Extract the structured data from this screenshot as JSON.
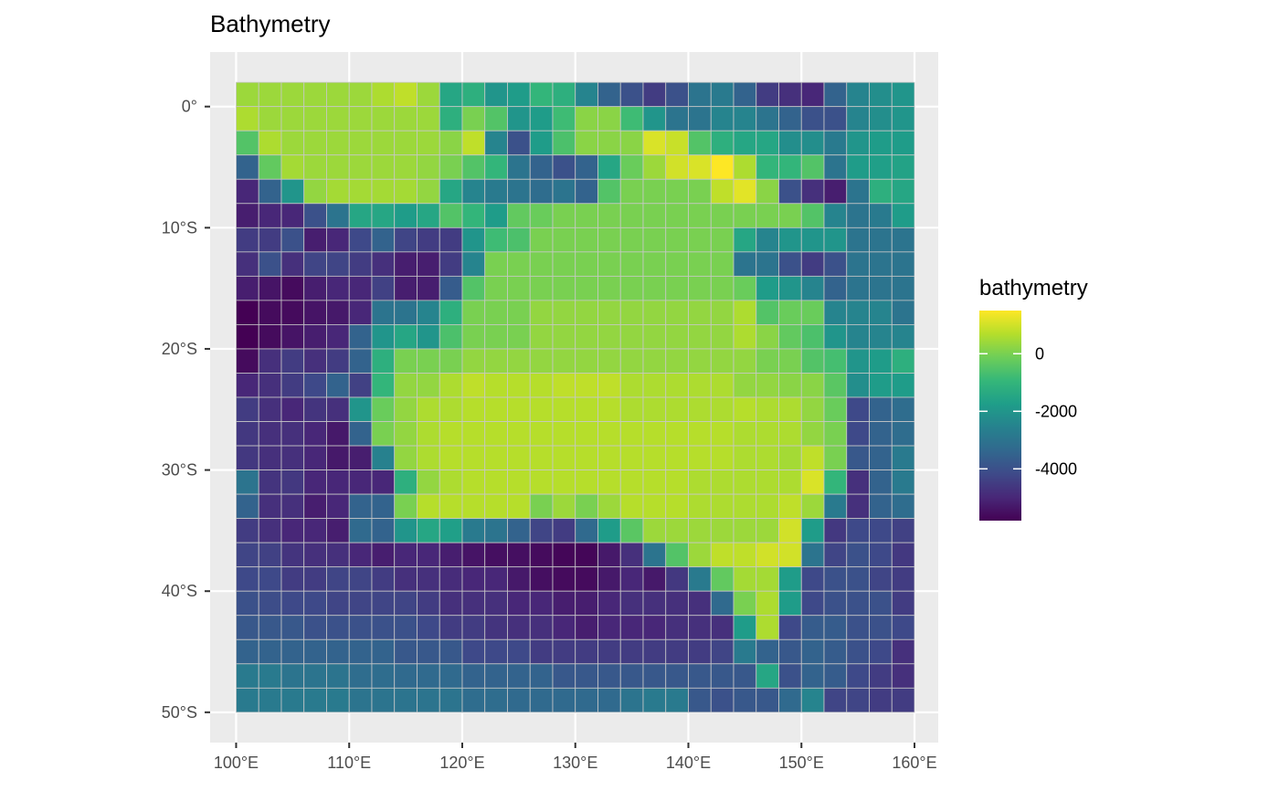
{
  "chart_data": {
    "type": "heatmap",
    "title": "Bathymetry",
    "xlabel": "",
    "ylabel": "",
    "x_ticks": [
      {
        "value": 100,
        "label": "100°E"
      },
      {
        "value": 110,
        "label": "110°E"
      },
      {
        "value": 120,
        "label": "120°E"
      },
      {
        "value": 130,
        "label": "130°E"
      },
      {
        "value": 140,
        "label": "140°E"
      },
      {
        "value": 150,
        "label": "150°E"
      },
      {
        "value": 160,
        "label": "160°E"
      }
    ],
    "y_ticks": [
      {
        "value": 0,
        "label": "0°"
      },
      {
        "value": -10,
        "label": "10°S"
      },
      {
        "value": -20,
        "label": "20°S"
      },
      {
        "value": -30,
        "label": "30°S"
      },
      {
        "value": -40,
        "label": "40°S"
      },
      {
        "value": -50,
        "label": "50°S"
      }
    ],
    "xlim": [
      97.7,
      162.1
    ],
    "ylim": [
      -52.5,
      4.5
    ],
    "x": [
      101,
      103,
      105,
      107,
      109,
      111,
      113,
      115,
      117,
      119,
      121,
      123,
      125,
      127,
      129,
      131,
      133,
      135,
      137,
      139,
      141,
      143,
      145,
      147,
      149,
      151,
      153,
      155,
      157,
      159
    ],
    "y": [
      1,
      -1,
      -3,
      -5,
      -7,
      -9,
      -11,
      -13,
      -15,
      -17,
      -19,
      -21,
      -23,
      -25,
      -27,
      -29,
      -31,
      -33,
      -35,
      -37,
      -39,
      -41,
      -43,
      -45,
      -47,
      -49
    ],
    "values": [
      [
        400,
        400,
        400,
        400,
        400,
        400,
        600,
        800,
        400,
        -1500,
        -1200,
        -2000,
        -1800,
        -1000,
        -1200,
        -2500,
        -3500,
        -4000,
        -4500,
        -4000,
        -3000,
        -2800,
        -3500,
        -4500,
        -4800,
        -5000,
        -3500,
        -2500,
        -2200,
        -2000
      ],
      [
        600,
        400,
        400,
        400,
        400,
        400,
        400,
        400,
        400,
        -1200,
        0,
        -500,
        -2000,
        -1800,
        -800,
        200,
        200,
        -800,
        -2000,
        -3000,
        -3000,
        -2500,
        -2500,
        -3000,
        -3500,
        -4000,
        -4000,
        -2500,
        -2200,
        -2000
      ],
      [
        -500,
        600,
        400,
        400,
        400,
        400,
        400,
        400,
        400,
        200,
        800,
        -2500,
        -4000,
        -1800,
        -600,
        200,
        200,
        200,
        1100,
        900,
        -500,
        -1200,
        -1500,
        -1500,
        -2200,
        -2200,
        -2800,
        -2000,
        -1800,
        -1800
      ],
      [
        -3500,
        -300,
        500,
        400,
        400,
        400,
        400,
        400,
        300,
        0,
        -500,
        -1000,
        -3000,
        -3500,
        -4000,
        -3500,
        -1500,
        -200,
        400,
        1000,
        1100,
        1500,
        600,
        -1000,
        -1000,
        -500,
        -3000,
        -1800,
        -1700,
        -1600
      ],
      [
        -5000,
        -3500,
        -2000,
        300,
        500,
        500,
        500,
        500,
        300,
        -1500,
        -2500,
        -2800,
        -3000,
        -3200,
        -3000,
        -3500,
        -500,
        0,
        0,
        0,
        0,
        800,
        1200,
        200,
        -4000,
        -4800,
        -5200,
        -3000,
        -1200,
        -1500
      ],
      [
        -5200,
        -5000,
        -5000,
        -4000,
        -3000,
        -1500,
        -1500,
        -1800,
        -1500,
        -500,
        -1000,
        -1800,
        -300,
        -200,
        0,
        0,
        0,
        0,
        0,
        0,
        0,
        0,
        0,
        0,
        0,
        -500,
        -2500,
        -3000,
        -2800,
        -1800
      ],
      [
        -4500,
        -4500,
        -4000,
        -5200,
        -5000,
        -4200,
        -3500,
        -4300,
        -4500,
        -4500,
        -2000,
        -800,
        -600,
        0,
        0,
        0,
        0,
        0,
        0,
        0,
        0,
        0,
        -1500,
        -2500,
        -2000,
        -2000,
        -2000,
        -3000,
        -3000,
        -3000
      ],
      [
        -4800,
        -4000,
        -4800,
        -4300,
        -4300,
        -4500,
        -4800,
        -5200,
        -5200,
        -4500,
        -2500,
        0,
        0,
        0,
        0,
        0,
        0,
        0,
        0,
        0,
        0,
        0,
        -3000,
        -3000,
        -4000,
        -4500,
        -4000,
        -3000,
        -3000,
        -3000
      ],
      [
        -5200,
        -5400,
        -5600,
        -5200,
        -5000,
        -5000,
        -4400,
        -5200,
        -5200,
        -3700,
        -500,
        0,
        0,
        0,
        0,
        0,
        0,
        0,
        0,
        0,
        0,
        0,
        -200,
        -1800,
        -2000,
        -2500,
        -3500,
        -3000,
        -3000,
        -3000
      ],
      [
        -5800,
        -5600,
        -5600,
        -5400,
        -5300,
        -5000,
        -3000,
        -3000,
        -2500,
        -1200,
        0,
        0,
        0,
        300,
        300,
        300,
        300,
        300,
        300,
        300,
        300,
        300,
        600,
        -500,
        -200,
        -200,
        -2500,
        -2500,
        -2500,
        -3000
      ],
      [
        -5800,
        -5600,
        -5400,
        -5200,
        -5000,
        -3500,
        -2000,
        -1500,
        -2000,
        -600,
        0,
        0,
        0,
        300,
        300,
        300,
        300,
        300,
        300,
        300,
        300,
        300,
        600,
        200,
        -300,
        -600,
        -2000,
        -2500,
        -2500,
        -2500
      ],
      [
        -5600,
        -4800,
        -4500,
        -4800,
        -4500,
        -3500,
        -1200,
        0,
        0,
        0,
        300,
        300,
        300,
        300,
        300,
        300,
        300,
        300,
        300,
        300,
        300,
        300,
        300,
        0,
        0,
        -500,
        -700,
        -2000,
        -1800,
        -1200
      ],
      [
        -5000,
        -4800,
        -4500,
        -4200,
        -3500,
        -4400,
        -1000,
        300,
        300,
        600,
        800,
        700,
        700,
        700,
        800,
        800,
        800,
        600,
        600,
        600,
        600,
        600,
        300,
        300,
        200,
        200,
        -400,
        -2200,
        -1800,
        -1800
      ],
      [
        -4500,
        -4800,
        -5000,
        -4700,
        -4800,
        -2000,
        -200,
        300,
        600,
        600,
        700,
        700,
        700,
        700,
        700,
        700,
        700,
        600,
        600,
        600,
        600,
        600,
        700,
        600,
        600,
        300,
        -200,
        -4200,
        -3500,
        -3200
      ],
      [
        -4600,
        -4800,
        -4800,
        -5000,
        -5300,
        -3500,
        0,
        300,
        600,
        700,
        700,
        700,
        700,
        700,
        700,
        700,
        700,
        700,
        700,
        700,
        700,
        700,
        600,
        600,
        600,
        300,
        0,
        -4200,
        -3500,
        -3200
      ],
      [
        -4600,
        -4800,
        -4800,
        -5000,
        -5300,
        -5200,
        -2600,
        300,
        600,
        700,
        700,
        700,
        700,
        700,
        700,
        700,
        700,
        700,
        700,
        700,
        700,
        700,
        600,
        600,
        500,
        800,
        0,
        -3800,
        -3500,
        -2800
      ],
      [
        -3000,
        -4700,
        -4600,
        -5000,
        -5000,
        -5000,
        -5000,
        -1200,
        300,
        600,
        700,
        700,
        700,
        700,
        700,
        700,
        700,
        700,
        700,
        700,
        600,
        600,
        600,
        600,
        600,
        1100,
        -1000,
        -4800,
        -3500,
        -2800
      ],
      [
        -3500,
        -4800,
        -4800,
        -5200,
        -5000,
        -3500,
        -3500,
        0,
        700,
        700,
        700,
        700,
        700,
        0,
        400,
        0,
        400,
        700,
        700,
        700,
        600,
        600,
        600,
        600,
        800,
        400,
        -2800,
        -4800,
        -3500,
        -3200
      ],
      [
        -4500,
        -4800,
        -5000,
        -5000,
        -5200,
        -3300,
        -3500,
        -2000,
        -1500,
        -1700,
        -2800,
        -3000,
        -3500,
        -4300,
        -4500,
        -3300,
        -1800,
        -400,
        400,
        400,
        400,
        400,
        400,
        400,
        1000,
        -1800,
        -4600,
        -4200,
        -4200,
        -4400
      ],
      [
        -4300,
        -4400,
        -4700,
        -4800,
        -4800,
        -5000,
        -5200,
        -5000,
        -5000,
        -5200,
        -5400,
        -5500,
        -5500,
        -5600,
        -5700,
        -5700,
        -5300,
        -4800,
        -3000,
        -500,
        400,
        800,
        800,
        1000,
        1000,
        -3000,
        -4300,
        -4000,
        -4200,
        -4600
      ],
      [
        -4200,
        -4200,
        -4500,
        -4500,
        -4300,
        -4300,
        -4500,
        -4800,
        -4800,
        -4900,
        -5000,
        -5000,
        -5300,
        -5500,
        -5600,
        -5600,
        -5300,
        -5000,
        -5300,
        -4600,
        -2800,
        -300,
        500,
        500,
        -1800,
        -4200,
        -4000,
        -4000,
        -4300,
        -4500
      ],
      [
        -4000,
        -4100,
        -4200,
        -4200,
        -4300,
        -4300,
        -4300,
        -4300,
        -4500,
        -4800,
        -4800,
        -4800,
        -5000,
        -5000,
        -5200,
        -5200,
        -5000,
        -4800,
        -4800,
        -4800,
        -4800,
        -3300,
        0,
        600,
        -1800,
        -4200,
        -4000,
        -4000,
        -4000,
        -4500
      ],
      [
        -3800,
        -3800,
        -3800,
        -4000,
        -4000,
        -4000,
        -4000,
        -4000,
        -4200,
        -4500,
        -4500,
        -4700,
        -4800,
        -4800,
        -5000,
        -5200,
        -5000,
        -5000,
        -5000,
        -4800,
        -4800,
        -4800,
        -1800,
        600,
        -4200,
        -3700,
        -3700,
        -4000,
        -4000,
        -4200
      ],
      [
        -3500,
        -3500,
        -3500,
        -3500,
        -3500,
        -3500,
        -3500,
        -3800,
        -3800,
        -3800,
        -4200,
        -4200,
        -4200,
        -4500,
        -4500,
        -4500,
        -4500,
        -4500,
        -4500,
        -4500,
        -4500,
        -4300,
        -2800,
        -3500,
        -3800,
        -3500,
        -3700,
        -4000,
        -4200,
        -4800
      ],
      [
        -2800,
        -2800,
        -3000,
        -3000,
        -3000,
        -3200,
        -3200,
        -3300,
        -3300,
        -3300,
        -3500,
        -3500,
        -3500,
        -3500,
        -3800,
        -3800,
        -3800,
        -3800,
        -3800,
        -3800,
        -3800,
        -3800,
        -3800,
        -1500,
        -4000,
        -3500,
        -3700,
        -4200,
        -4500,
        -4800
      ],
      [
        -2800,
        -2800,
        -2800,
        -2800,
        -2800,
        -3000,
        -3000,
        -3000,
        -3000,
        -3000,
        -3200,
        -3200,
        -3300,
        -3300,
        -3300,
        -3300,
        -3300,
        -3000,
        -2800,
        -2800,
        -3800,
        -4000,
        -3800,
        -3800,
        -3300,
        -2500,
        -4300,
        -4300,
        -4500,
        -4500
      ]
    ],
    "color_scale": {
      "name": "viridis",
      "limits": [
        -5800,
        1500
      ],
      "colors": [
        "#440154",
        "#482878",
        "#3e4a89",
        "#31688e",
        "#26828e",
        "#1f9e89",
        "#35b779",
        "#6ece58",
        "#b5de2b",
        "#fde725"
      ]
    },
    "legend": {
      "title": "bathymetry",
      "position": "right",
      "breaks": [
        {
          "value": 0,
          "label": "0"
        },
        {
          "value": -2000,
          "label": "-2000"
        },
        {
          "value": -4000,
          "label": "-4000"
        }
      ]
    },
    "panel_background": "#ebebeb",
    "grid_color": "#ffffff",
    "tile_border_color": "#c8c8c8",
    "grid": true
  }
}
